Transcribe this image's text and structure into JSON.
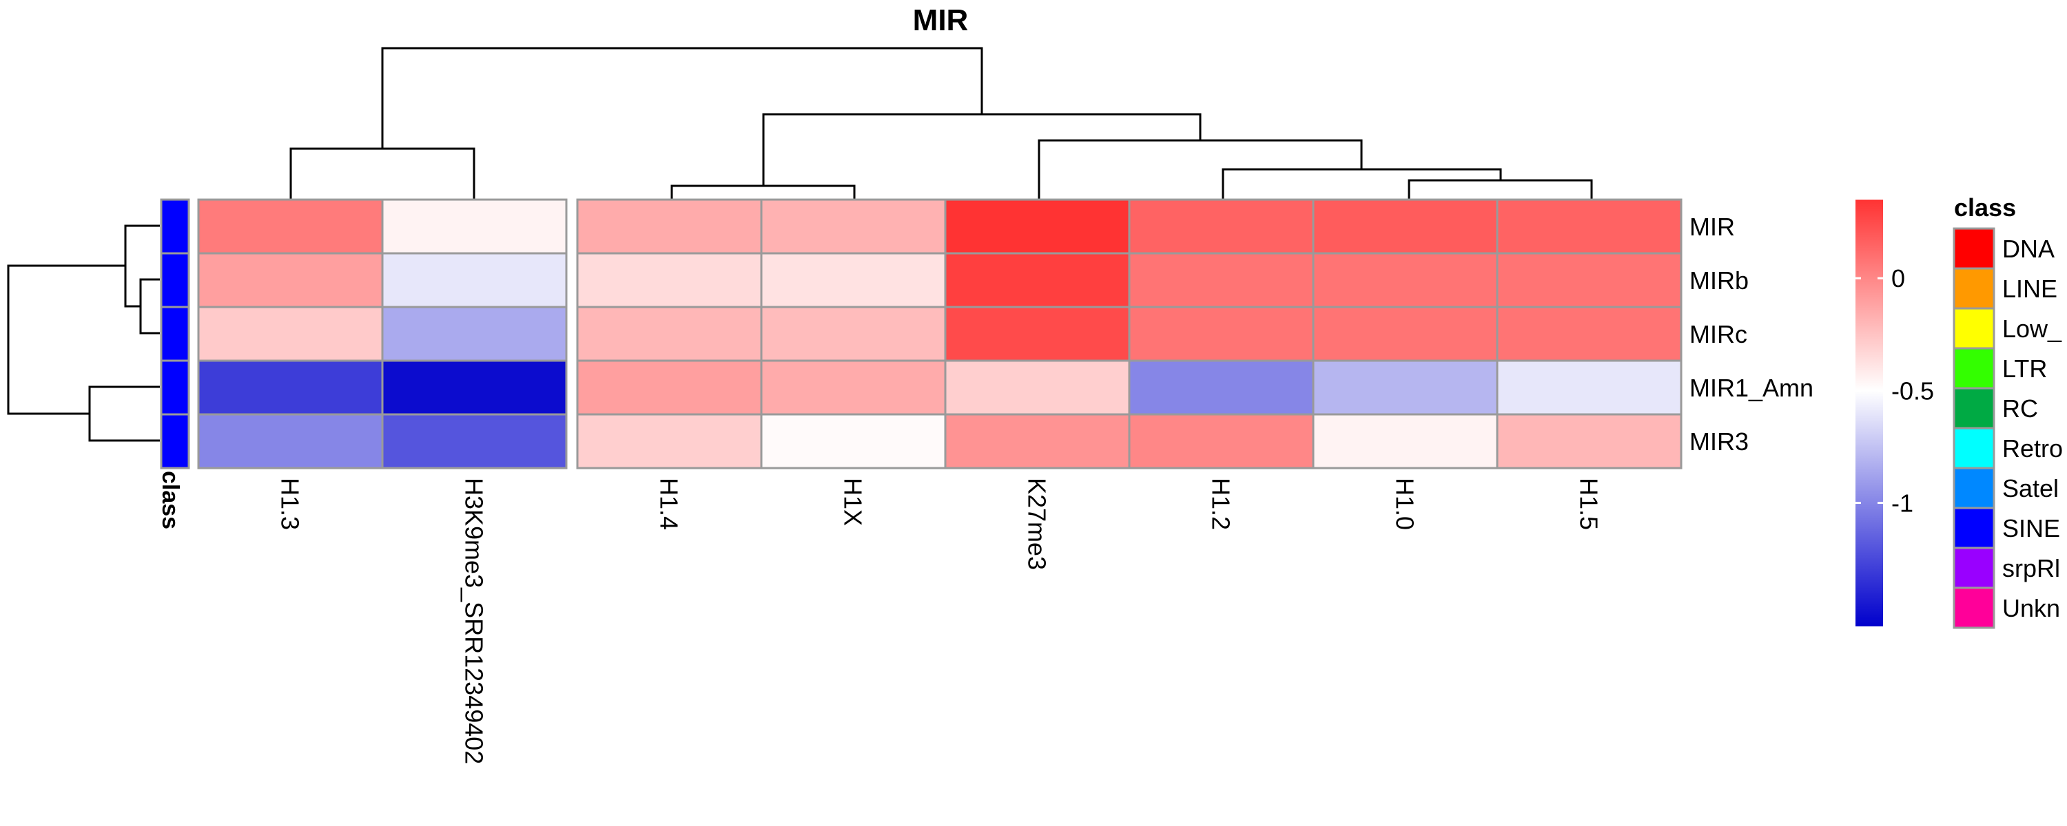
{
  "chart_data": {
    "type": "heatmap",
    "title": "MIR",
    "rows": [
      "MIR",
      "MIRb",
      "MIRc",
      "MIR1_Amn",
      "MIR3"
    ],
    "columns": [
      "H1.3",
      "H3K9me3_SRR12349402",
      "H1.4",
      "H1X",
      "K27me3",
      "H1.2",
      "H1.0",
      "H1.5"
    ],
    "values": [
      [
        0.05,
        -0.45,
        -0.15,
        -0.18,
        0.35,
        0.15,
        0.18,
        0.15
      ],
      [
        -0.1,
        -0.6,
        -0.35,
        -0.38,
        0.3,
        0.08,
        0.08,
        0.08
      ],
      [
        -0.28,
        -0.85,
        -0.2,
        -0.22,
        0.25,
        0.08,
        0.08,
        0.08
      ],
      [
        -1.3,
        -1.5,
        -0.1,
        -0.15,
        -0.3,
        -1.0,
        -0.8,
        -0.6
      ],
      [
        -1.0,
        -1.2,
        -0.3,
        -0.48,
        -0.05,
        0.0,
        -0.45,
        -0.2
      ]
    ],
    "color_scale": {
      "min": -1.55,
      "mid": -0.5,
      "max": 0.35,
      "low_color": "#0000CC",
      "mid_color": "#FFFFFF",
      "high_color": "#FF3333",
      "ticks": [
        "0",
        "-0.5",
        "-1"
      ],
      "tick_values": [
        0,
        -0.5,
        -1
      ]
    },
    "row_annotation": {
      "label": "class",
      "values": [
        "SINE",
        "SINE",
        "SINE",
        "SINE",
        "SINE"
      ]
    },
    "legend": {
      "title": "class",
      "items": [
        {
          "label": "DNA",
          "color": "#FF0000"
        },
        {
          "label": "LINE",
          "color": "#FF9900"
        },
        {
          "label": "Low_",
          "color": "#FFFF00"
        },
        {
          "label": "LTR",
          "color": "#33FF00"
        },
        {
          "label": "RC",
          "color": "#00AA44"
        },
        {
          "label": "Retro",
          "color": "#00FFFF"
        },
        {
          "label": "Satel",
          "color": "#0088FF"
        },
        {
          "label": "SINE",
          "color": "#0000FF"
        },
        {
          "label": "srpRl",
          "color": "#9900FF"
        },
        {
          "label": "Unkn",
          "color": "#FF0099"
        }
      ]
    },
    "column_gap_after": 2,
    "legend_placement": "right"
  }
}
